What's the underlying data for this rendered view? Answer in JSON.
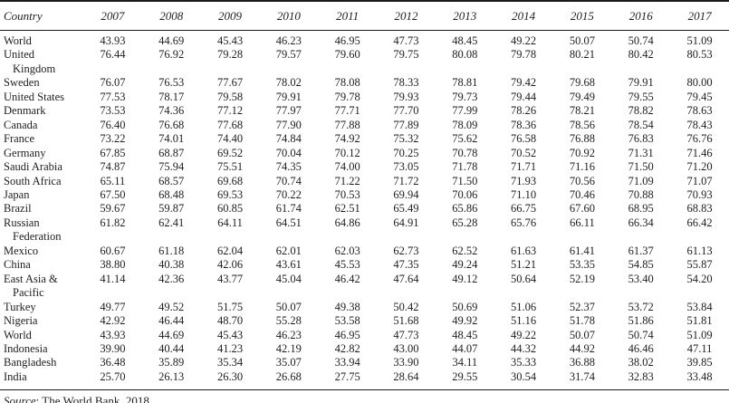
{
  "page": {
    "background_color": "#ffffff",
    "text_color": "#1e1e1e",
    "rule_color": "#1a1a1a"
  },
  "table": {
    "columns": [
      "Country",
      "2007",
      "2008",
      "2009",
      "2010",
      "2011",
      "2012",
      "2013",
      "2014",
      "2015",
      "2016",
      "2017"
    ],
    "rows": [
      {
        "country": "World",
        "name_lines": [
          "World"
        ],
        "values": [
          "43.93",
          "44.69",
          "45.43",
          "46.23",
          "46.95",
          "47.73",
          "48.45",
          "49.22",
          "50.07",
          "50.74",
          "51.09"
        ]
      },
      {
        "country": "United Kingdom",
        "name_lines": [
          "United",
          "Kingdom"
        ],
        "values": [
          "76.44",
          "76.92",
          "79.28",
          "79.57",
          "79.60",
          "79.75",
          "80.08",
          "79.78",
          "80.21",
          "80.42",
          "80.53"
        ]
      },
      {
        "country": "Sweden",
        "name_lines": [
          "Sweden"
        ],
        "values": [
          "76.07",
          "76.53",
          "77.67",
          "78.02",
          "78.08",
          "78.33",
          "78.81",
          "79.42",
          "79.68",
          "79.91",
          "80.00"
        ]
      },
      {
        "country": "United States",
        "name_lines": [
          "United States"
        ],
        "values": [
          "77.53",
          "78.17",
          "79.58",
          "79.91",
          "79.78",
          "79.93",
          "79.73",
          "79.44",
          "79.49",
          "79.55",
          "79.45"
        ]
      },
      {
        "country": "Denmark",
        "name_lines": [
          "Denmark"
        ],
        "values": [
          "73.53",
          "74.36",
          "77.12",
          "77.97",
          "77.71",
          "77.70",
          "77.99",
          "78.26",
          "78.21",
          "78.82",
          "78.63"
        ]
      },
      {
        "country": "Canada",
        "name_lines": [
          "Canada"
        ],
        "values": [
          "76.40",
          "76.68",
          "77.68",
          "77.90",
          "77.88",
          "77.89",
          "78.09",
          "78.36",
          "78.56",
          "78.54",
          "78.43"
        ]
      },
      {
        "country": "France",
        "name_lines": [
          "France"
        ],
        "values": [
          "73.22",
          "74.01",
          "74.40",
          "74.84",
          "74.92",
          "75.32",
          "75.62",
          "76.58",
          "76.88",
          "76.83",
          "76.76"
        ]
      },
      {
        "country": "Germany",
        "name_lines": [
          "Germany"
        ],
        "values": [
          "67.85",
          "68.87",
          "69.52",
          "70.04",
          "70.12",
          "70.25",
          "70.78",
          "70.52",
          "70.92",
          "71.31",
          "71.46"
        ]
      },
      {
        "country": "Saudi Arabia",
        "name_lines": [
          "Saudi Arabia"
        ],
        "values": [
          "74.87",
          "75.94",
          "75.51",
          "74.35",
          "74.00",
          "73.05",
          "71.78",
          "71.71",
          "71.16",
          "71.50",
          "71.20"
        ]
      },
      {
        "country": "South Africa",
        "name_lines": [
          "South Africa"
        ],
        "values": [
          "65.11",
          "68.57",
          "69.68",
          "70.74",
          "71.22",
          "71.72",
          "71.50",
          "71.93",
          "70.56",
          "71.09",
          "71.07"
        ]
      },
      {
        "country": "Japan",
        "name_lines": [
          "Japan"
        ],
        "values": [
          "67.50",
          "68.48",
          "69.53",
          "70.22",
          "70.53",
          "69.94",
          "70.06",
          "71.10",
          "70.46",
          "70.88",
          "70.93"
        ]
      },
      {
        "country": "Brazil",
        "name_lines": [
          "Brazil"
        ],
        "values": [
          "59.67",
          "59.87",
          "60.85",
          "61.74",
          "62.51",
          "65.49",
          "65.86",
          "66.75",
          "67.60",
          "68.95",
          "68.83"
        ]
      },
      {
        "country": "Russian Federation",
        "name_lines": [
          "Russian",
          "Federation"
        ],
        "values": [
          "61.82",
          "62.41",
          "64.11",
          "64.51",
          "64.86",
          "64.91",
          "65.28",
          "65.76",
          "66.11",
          "66.34",
          "66.42"
        ]
      },
      {
        "country": "Mexico",
        "name_lines": [
          "Mexico"
        ],
        "values": [
          "60.67",
          "61.18",
          "62.04",
          "62.01",
          "62.03",
          "62.73",
          "62.52",
          "61.63",
          "61.41",
          "61.37",
          "61.13"
        ]
      },
      {
        "country": "China",
        "name_lines": [
          "China"
        ],
        "values": [
          "38.80",
          "40.38",
          "42.06",
          "43.61",
          "45.53",
          "47.35",
          "49.24",
          "51.21",
          "53.35",
          "54.85",
          "55.87"
        ]
      },
      {
        "country": "East Asia & Pacific",
        "name_lines": [
          "East Asia &",
          "Pacific"
        ],
        "values": [
          "41.14",
          "42.36",
          "43.77",
          "45.04",
          "46.42",
          "47.64",
          "49.12",
          "50.64",
          "52.19",
          "53.40",
          "54.20"
        ]
      },
      {
        "country": "Turkey",
        "name_lines": [
          "Turkey"
        ],
        "values": [
          "49.77",
          "49.52",
          "51.75",
          "50.07",
          "49.38",
          "50.42",
          "50.69",
          "51.06",
          "52.37",
          "53.72",
          "53.84"
        ]
      },
      {
        "country": "Nigeria",
        "name_lines": [
          "Nigeria"
        ],
        "values": [
          "42.92",
          "46.44",
          "48.70",
          "55.28",
          "53.58",
          "51.68",
          "49.92",
          "51.16",
          "51.78",
          "51.86",
          "51.81"
        ]
      },
      {
        "country": "World",
        "name_lines": [
          "World"
        ],
        "values": [
          "43.93",
          "44.69",
          "45.43",
          "46.23",
          "46.95",
          "47.73",
          "48.45",
          "49.22",
          "50.07",
          "50.74",
          "51.09"
        ]
      },
      {
        "country": "Indonesia",
        "name_lines": [
          "Indonesia"
        ],
        "values": [
          "39.90",
          "40.44",
          "41.23",
          "42.19",
          "42.82",
          "43.00",
          "44.07",
          "44.32",
          "44.92",
          "46.46",
          "47.11"
        ]
      },
      {
        "country": "Bangladesh",
        "name_lines": [
          "Bangladesh"
        ],
        "values": [
          "36.48",
          "35.89",
          "35.34",
          "35.07",
          "33.94",
          "33.90",
          "34.11",
          "35.33",
          "36.88",
          "38.02",
          "39.85"
        ]
      },
      {
        "country": "India",
        "name_lines": [
          "India"
        ],
        "values": [
          "25.70",
          "26.13",
          "26.30",
          "26.68",
          "27.75",
          "28.64",
          "29.55",
          "30.54",
          "31.74",
          "32.83",
          "33.48"
        ]
      }
    ]
  },
  "footer": {
    "source_label": "Source",
    "source_rest": ": The World Bank, 2018"
  }
}
